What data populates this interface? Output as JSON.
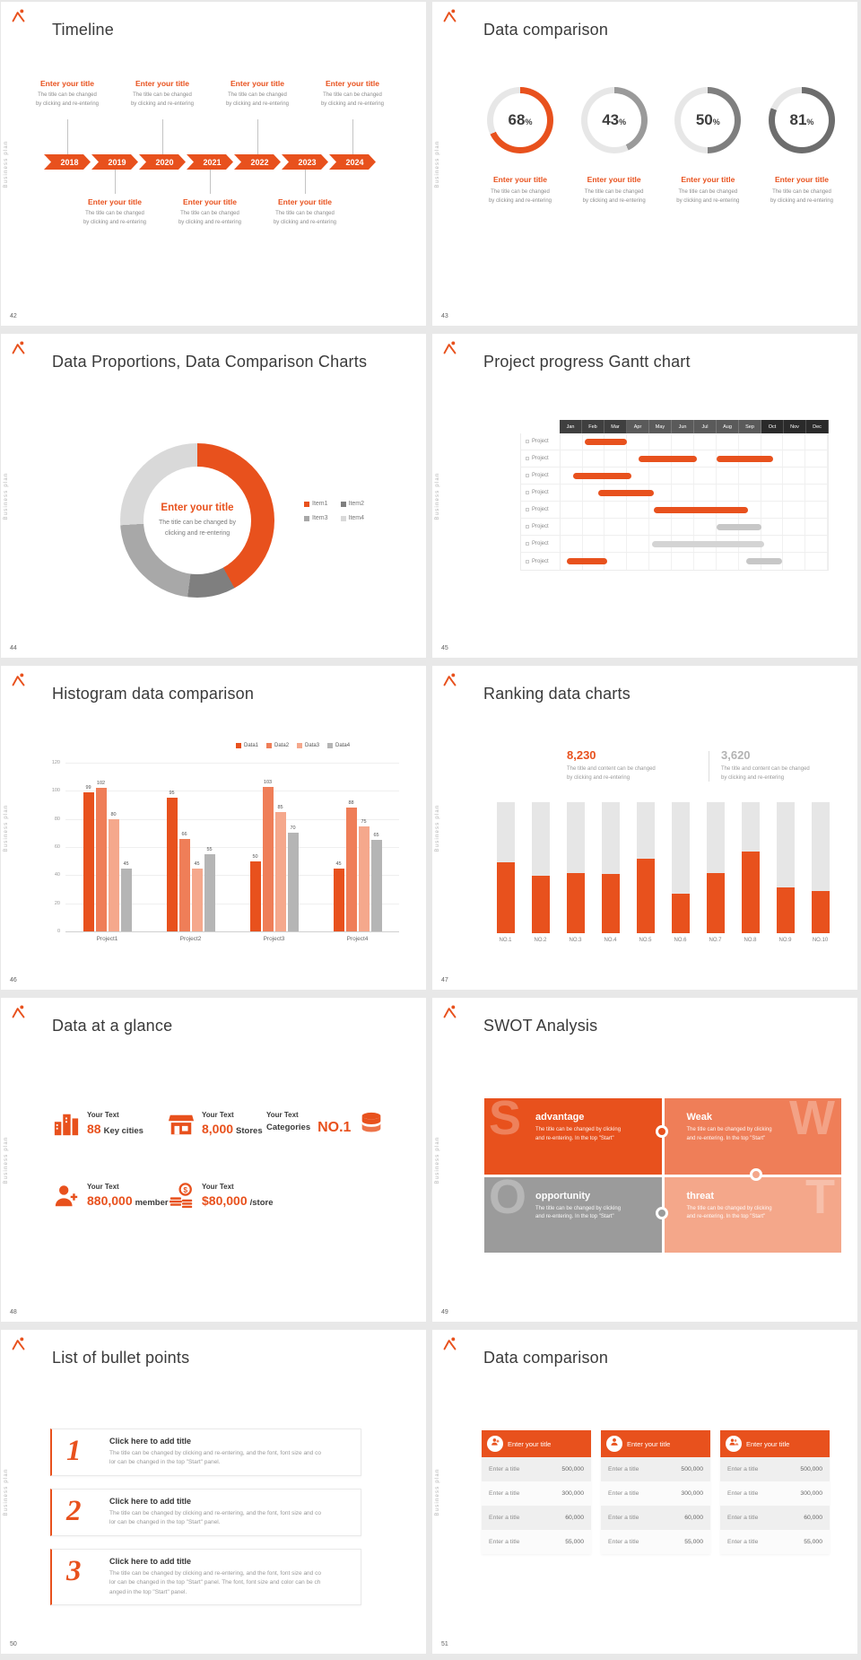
{
  "common": {
    "side_label": "Business plan",
    "entry_title": "Enter your title",
    "entry_lines": [
      "The title can be changed",
      "by clicking and re-entering"
    ],
    "brand_color": "#e8511d"
  },
  "slides": {
    "s42": {
      "page": "42",
      "title": "Timeline",
      "years": [
        "2018",
        "2019",
        "2020",
        "2021",
        "2022",
        "2023",
        "2024"
      ],
      "top_entry_year_indexes": [
        0,
        2,
        4,
        6
      ],
      "bottom_entry_year_indexes": [
        1,
        3,
        5
      ]
    },
    "s43": {
      "page": "43",
      "title": "Data comparison",
      "chart_data": {
        "type": "pie",
        "unit": "%",
        "items": [
          {
            "value": 68,
            "display": "68",
            "color": "#e8511d"
          },
          {
            "value": 43,
            "display": "43",
            "color": "#9a9a9a"
          },
          {
            "value": 50,
            "display": "50",
            "color": "#7f7f7f"
          },
          {
            "value": 81,
            "display": "81",
            "color": "#6d6d6d"
          }
        ]
      }
    },
    "s44": {
      "page": "44",
      "title": "Data Proportions, Data Comparison Charts",
      "center_title": "Enter your title",
      "center_lines": [
        "The title can be changed by",
        "clicking and re-entering"
      ],
      "chart_data": {
        "type": "pie",
        "segments": [
          {
            "label": "Item1",
            "value": 42,
            "color": "#e8511d"
          },
          {
            "label": "Item2",
            "value": 10,
            "color": "#7f7f7f"
          },
          {
            "label": "Item3",
            "value": 22,
            "color": "#a8a8a8"
          },
          {
            "label": "Item4",
            "value": 26,
            "color": "#d9d9d9"
          }
        ]
      }
    },
    "s45": {
      "page": "45",
      "title": "Project progress Gantt chart",
      "months": [
        "Jan",
        "Feb",
        "Mar",
        "Apr",
        "May",
        "Jun",
        "Jul",
        "Aug",
        "Sep",
        "Oct",
        "Nov",
        "Dec"
      ],
      "row_label": "Project",
      "row_count": 8,
      "bars": [
        {
          "row": 0,
          "start": 1.1,
          "len": 1.9,
          "color": "#e8511d"
        },
        {
          "row": 1,
          "start": 3.5,
          "len": 2.6,
          "color": "#e8511d"
        },
        {
          "row": 1,
          "start": 7.0,
          "len": 2.5,
          "color": "#e8511d"
        },
        {
          "row": 2,
          "start": 0.6,
          "len": 2.6,
          "color": "#e8511d"
        },
        {
          "row": 3,
          "start": 1.7,
          "len": 2.5,
          "color": "#e8511d"
        },
        {
          "row": 4,
          "start": 4.2,
          "len": 4.2,
          "color": "#e8511d"
        },
        {
          "row": 5,
          "start": 7.0,
          "len": 2.0,
          "color": "#c7c7c7"
        },
        {
          "row": 6,
          "start": 4.1,
          "len": 5.0,
          "color": "#d4d4d4"
        },
        {
          "row": 7,
          "start": 0.3,
          "len": 1.8,
          "color": "#e8511d"
        },
        {
          "row": 7,
          "start": 8.3,
          "len": 1.6,
          "color": "#c7c7c7"
        }
      ]
    },
    "s46": {
      "page": "46",
      "title": "Histogram data comparison",
      "chart_data": {
        "type": "bar",
        "categories": [
          "Project1",
          "Project2",
          "Project3",
          "Project4"
        ],
        "series": [
          {
            "name": "Data1",
            "color": "#e8511d",
            "values": [
              99,
              95,
              50,
              45
            ]
          },
          {
            "name": "Data2",
            "color": "#ef7e58",
            "values": [
              102,
              66,
              103,
              88
            ]
          },
          {
            "name": "Data3",
            "color": "#f5a88c",
            "values": [
              80,
              45,
              85,
              75
            ]
          },
          {
            "name": "Data4",
            "color": "#b5b5b5",
            "values": [
              45,
              55,
              70,
              65
            ]
          }
        ],
        "ylim": [
          0,
          120
        ],
        "yticks": [
          0,
          20,
          40,
          60,
          80,
          100,
          120
        ]
      }
    },
    "s47": {
      "page": "47",
      "title": "Ranking data charts",
      "stats": [
        {
          "value": "8,230",
          "color": "#e8511d",
          "lines": [
            "The title and content can be changed",
            "by clicking and re-entering"
          ]
        },
        {
          "value": "3,620",
          "color": "#b3b3b3",
          "lines": [
            "The title and content can be changed",
            "by clicking and re-entering"
          ]
        }
      ],
      "chart_data": {
        "type": "bar",
        "categories": [
          "NO.1",
          "NO.2",
          "NO.3",
          "NO.4",
          "NO.5",
          "NO.6",
          "NO.7",
          "NO.8",
          "NO.9",
          "NO.10"
        ],
        "values_pct": [
          54,
          44,
          46,
          45,
          57,
          30,
          46,
          62,
          35,
          32
        ],
        "bar_color": "#e8511d",
        "track_color": "#e6e6e6"
      }
    },
    "s48": {
      "page": "48",
      "title": "Data at a glance",
      "items": [
        {
          "icon": "buildings-icon",
          "label": "Your Text",
          "value": "88",
          "unit": "Key cities"
        },
        {
          "icon": "store-icon",
          "label": "Your Text",
          "value": "8,000",
          "unit": "Stores"
        },
        {
          "icon": "database-icon",
          "label": "Your Text",
          "value": "NO.1",
          "unit": "Categories"
        },
        {
          "icon": "member-icon",
          "label": "Your Text",
          "value": "880,000",
          "unit": "member"
        },
        {
          "icon": "money-icon",
          "label": "Your Text",
          "value": "$80,000",
          "unit": "/store"
        }
      ]
    },
    "s49": {
      "page": "49",
      "title": "SWOT Analysis",
      "cells": [
        {
          "letter": "S",
          "word": "advantage",
          "color": "#e8511d",
          "lines": [
            "The title can be changed by clicking",
            "and re-entering. In the top \"Start\""
          ]
        },
        {
          "letter": "W",
          "word": "Weak",
          "color": "#ef7e58",
          "lines": [
            "The title can be changed by clicking",
            "and re-entering. In the top \"Start\""
          ]
        },
        {
          "letter": "O",
          "word": "opportunity",
          "color": "#9b9b9b",
          "lines": [
            "The title can be changed by clicking",
            "and re-entering. In the top \"Start\""
          ]
        },
        {
          "letter": "T",
          "word": "threat",
          "color": "#f4a78a",
          "lines": [
            "The title can be changed by clicking",
            "and re-entering. In the top \"Start\""
          ]
        }
      ]
    },
    "s50": {
      "page": "50",
      "title": "List of bullet points",
      "items": [
        {
          "num": "1",
          "title": "Click here to add title",
          "lines": [
            "The title can be changed by clicking and re-entering, and the font, font size and co",
            "lor can be changed in the top \"Start\" panel."
          ]
        },
        {
          "num": "2",
          "title": "Click here to add title",
          "lines": [
            "The title can be changed by clicking and re-entering, and the font, font size and co",
            "lor can be changed in the top \"Start\" panel."
          ]
        },
        {
          "num": "3",
          "title": "Click here to add title",
          "lines": [
            "The title can be changed by clicking and re-entering, and the font, font size and co",
            "lor can be changed in the top \"Start\" panel. The font, font size and color can be ch",
            "anged in the top \"Start\" panel."
          ]
        }
      ]
    },
    "s51": {
      "page": "51",
      "title": "Data comparison",
      "cards": [
        {
          "icon": "user-plus-icon",
          "header": "Enter your title",
          "rows": [
            {
              "label": "Enter a title",
              "value": "500,000"
            },
            {
              "label": "Enter a title",
              "value": "300,000"
            },
            {
              "label": "Enter a title",
              "value": "60,000"
            },
            {
              "label": "Enter a title",
              "value": "55,000"
            }
          ]
        },
        {
          "icon": "user-icon",
          "header": "Enter your title",
          "rows": [
            {
              "label": "Enter a title",
              "value": "500,000"
            },
            {
              "label": "Enter a title",
              "value": "300,000"
            },
            {
              "label": "Enter a title",
              "value": "60,000"
            },
            {
              "label": "Enter a title",
              "value": "55,000"
            }
          ]
        },
        {
          "icon": "users-icon",
          "header": "Enter your title",
          "rows": [
            {
              "label": "Enter a title",
              "value": "500,000"
            },
            {
              "label": "Enter a title",
              "value": "300,000"
            },
            {
              "label": "Enter a title",
              "value": "60,000"
            },
            {
              "label": "Enter a title",
              "value": "55,000"
            }
          ]
        }
      ]
    }
  }
}
